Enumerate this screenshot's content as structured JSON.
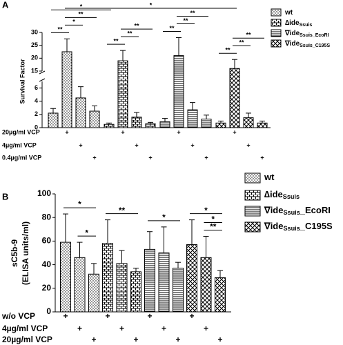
{
  "chart_data": [
    {
      "type": "bar",
      "panel": "A",
      "ylabel": [
        "Survival Factor"
      ],
      "ylim": [
        0,
        30
      ],
      "ybreak": [
        7,
        15
      ],
      "yticks": [
        0,
        2,
        4,
        6,
        15,
        20,
        25,
        30
      ],
      "series": [
        {
          "name": "wt",
          "pattern": "dots",
          "color": "#000000",
          "values": [
            2.2,
            22.5,
            4.5,
            2.5
          ],
          "errors": [
            0.7,
            5,
            1.7,
            0.8
          ]
        },
        {
          "name": "∆ide",
          "name_sub": "Ssuis",
          "pattern": "bricks",
          "color": "#000000",
          "values": [
            0.5,
            19,
            1.6,
            0.6
          ],
          "errors": [
            0.2,
            4,
            0.7,
            0.2
          ]
        },
        {
          "name": "∇ide",
          "name_sub": "Ssuis_EcoRI",
          "pattern": "hlines",
          "color": "#000000",
          "values": [
            0.9,
            21,
            2.7,
            1.3
          ],
          "errors": [
            0.5,
            7,
            1.1,
            0.6
          ]
        },
        {
          "name": "∇ide",
          "name_sub": "Ssuis_C195S",
          "pattern": "crosshatch",
          "color": "#000000",
          "values": [
            0.7,
            16,
            1.5,
            0.7
          ],
          "errors": [
            0.3,
            3.5,
            0.7,
            0.3
          ]
        }
      ],
      "conditions": [
        {
          "label": "20µg/ml VCP",
          "marks": [
            null,
            "+",
            null,
            null
          ]
        },
        {
          "label": "4µg/ml VCP",
          "marks": [
            null,
            null,
            "+",
            null
          ]
        },
        {
          "label": "0.4µg/ml VCP",
          "marks": [
            null,
            null,
            null,
            "+"
          ]
        }
      ],
      "brackets": [
        {
          "label": "**",
          "bars": [
            0,
            1
          ]
        },
        {
          "label": "*",
          "bars": [
            1,
            2
          ]
        },
        {
          "label": "**",
          "bars": [
            1,
            3
          ]
        },
        {
          "label": "*",
          "bars": [
            0,
            4
          ]
        },
        {
          "label": "*",
          "bars": [
            1,
            13
          ]
        },
        {
          "label": "**",
          "bars": [
            4,
            5
          ]
        },
        {
          "label": "**",
          "bars": [
            5,
            6
          ]
        },
        {
          "label": "**",
          "bars": [
            5,
            7
          ]
        },
        {
          "label": "**",
          "bars": [
            8,
            9
          ]
        },
        {
          "label": "**",
          "bars": [
            9,
            10
          ]
        },
        {
          "label": "**",
          "bars": [
            9,
            11
          ]
        },
        {
          "label": "**",
          "bars": [
            12,
            13
          ]
        },
        {
          "label": "**",
          "bars": [
            13,
            14
          ]
        },
        {
          "label": "**",
          "bars": [
            13,
            15
          ]
        }
      ]
    },
    {
      "type": "bar",
      "panel": "B",
      "ylabel": [
        "sC5b-9",
        "(ELISA units/ml)"
      ],
      "ylim": [
        0,
        100
      ],
      "yticks": [
        0,
        20,
        40,
        60,
        80,
        100
      ],
      "series": [
        {
          "name": "wt",
          "pattern": "dots",
          "color": "#000000",
          "values": [
            59,
            46,
            32
          ],
          "errors": [
            24,
            13,
            9
          ]
        },
        {
          "name": "∆ide",
          "name_sub": "Ssuis",
          "pattern": "bricks",
          "color": "#000000",
          "values": [
            58,
            41,
            34
          ],
          "errors": [
            20,
            11,
            3
          ]
        },
        {
          "name": "∇ide",
          "name_sub": "Ssuis",
          "name_end": "_EcoRI",
          "pattern": "hlines",
          "color": "#000000",
          "values": [
            53,
            50,
            37
          ],
          "errors": [
            15,
            22,
            5
          ]
        },
        {
          "name": "∇ide",
          "name_sub": "Ssuis",
          "name_end": "_C195S",
          "pattern": "crosshatch",
          "color": "#000000",
          "values": [
            57,
            46,
            29
          ],
          "errors": [
            21,
            18,
            6
          ]
        }
      ],
      "conditions": [
        {
          "label": "w/o VCP",
          "marks": [
            "+",
            null,
            null
          ]
        },
        {
          "label": "4µg/ml VCP",
          "marks": [
            null,
            "+",
            null
          ]
        },
        {
          "label": "20µg/ml VCP",
          "marks": [
            null,
            null,
            "+"
          ]
        }
      ],
      "brackets": [
        {
          "label": "*",
          "bars": [
            0,
            2
          ]
        },
        {
          "label": "*",
          "bars": [
            1,
            2
          ]
        },
        {
          "label": "**",
          "bars": [
            3,
            5
          ]
        },
        {
          "label": "*",
          "bars": [
            6,
            8
          ]
        },
        {
          "label": "*",
          "bars": [
            9,
            11
          ]
        },
        {
          "label": "**",
          "bars": [
            10,
            11
          ]
        },
        {
          "label": "*",
          "bars": [
            10,
            11
          ]
        }
      ]
    }
  ]
}
